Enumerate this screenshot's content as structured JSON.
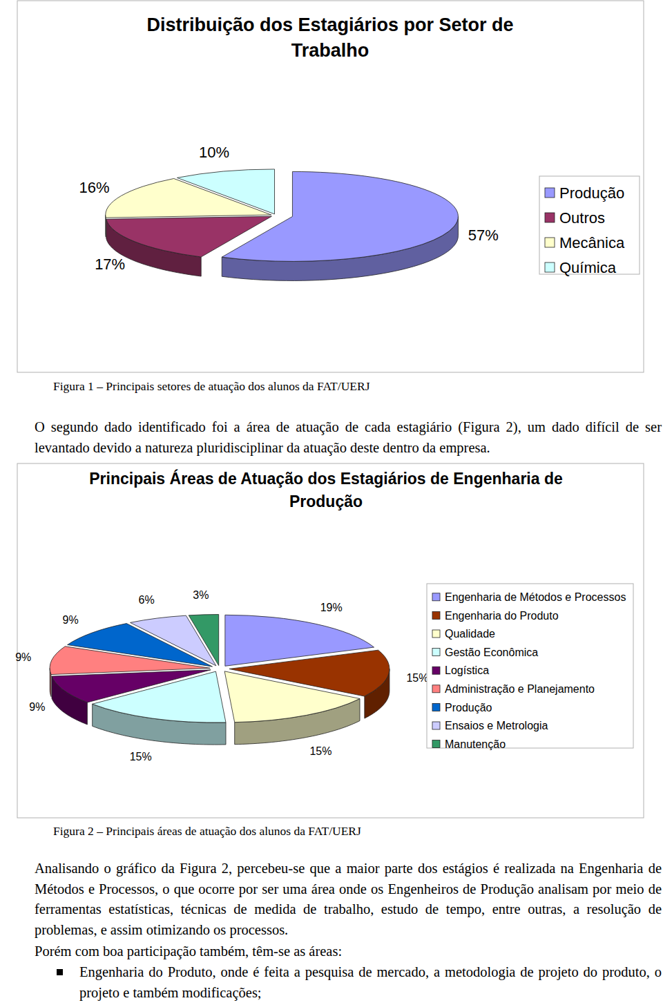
{
  "chart_data": [
    {
      "type": "pie",
      "title": "Distribuição dos Estagiários por Setor de Trabalho",
      "categories": [
        "Produção",
        "Outros",
        "Mecânica",
        "Química"
      ],
      "values": [
        57,
        17,
        16,
        10
      ],
      "value_labels": [
        "57%",
        "17%",
        "16%",
        "10%"
      ],
      "colors": [
        "#9999ff",
        "#993366",
        "#ffffcc",
        "#ccffff"
      ],
      "data_labels": true,
      "legend": "right"
    },
    {
      "type": "pie",
      "title": "Principais Áreas de Atuação dos Estagiários de Engenharia de Produção",
      "categories": [
        "Engenharia de Métodos e Processos",
        "Engenharia do Produto",
        "Qualidade",
        "Gestão Econômica",
        "Logística",
        "Administração e Planejamento",
        "Produção",
        "Ensaios e Metrologia",
        "Manutenção"
      ],
      "values": [
        19,
        15,
        15,
        15,
        9,
        9,
        9,
        6,
        3
      ],
      "value_labels": [
        "19%",
        "15%",
        "15%",
        "15%",
        "9%",
        "9%",
        "9%",
        "6%",
        "3%"
      ],
      "colors": [
        "#9999ff",
        "#993300",
        "#ffffcc",
        "#ccffff",
        "#660066",
        "#ff8080",
        "#0066cc",
        "#ccccff",
        "#339966"
      ],
      "data_labels": true,
      "legend": "right"
    }
  ],
  "document": {
    "captions": [
      "Figura 1 – Principais setores de atuação dos alunos da FAT/UERJ",
      "Figura 2 – Principais áreas de atuação dos alunos da FAT/UERJ"
    ],
    "paragraphs": [
      "O segundo dado identificado foi a área de atuação de cada estagiário (Figura 2), um dado difícil de ser levantado devido a natureza pluridisciplinar da atuação deste dentro da empresa.",
      "Analisando o gráfico da Figura 2, percebeu-se que a maior parte dos estágios é realizada na Engenharia de Métodos e Processos, o que ocorre por ser uma área onde os Engenheiros de Produção analisam por meio de ferramentas estatísticas, técnicas de medida de trabalho, estudo de tempo, entre outras, a resolução de problemas, e assim otimizando os processos.",
      "Porém com boa participação também, têm-se as áreas:"
    ],
    "bullets": [
      "Engenharia do Produto, onde é feita a pesquisa de mercado, a metodologia de projeto do produto, o projeto e também modificações;"
    ]
  }
}
